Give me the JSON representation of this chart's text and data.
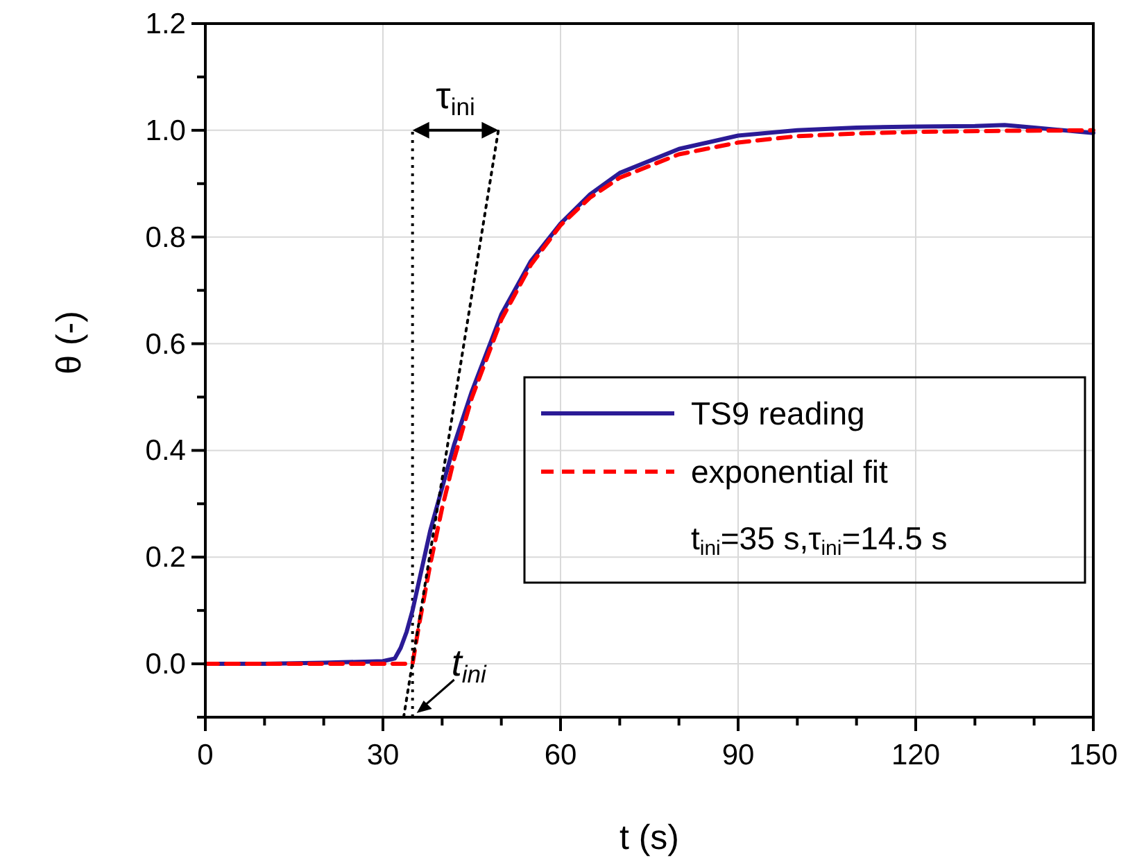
{
  "chart_data": {
    "type": "line",
    "xlabel": "t (s)",
    "ylabel": "θ (-)",
    "xlim": [
      0,
      150
    ],
    "xticks": [
      0,
      {
        "value": 10,
        "label": null
      },
      {
        "value": 20,
        "label": null
      },
      30,
      {
        "value": 40,
        "label": null
      },
      {
        "value": 50,
        "label": null
      },
      60,
      {
        "value": 70,
        "label": null
      },
      {
        "value": 80,
        "label": null
      },
      90,
      {
        "value": 100,
        "label": null
      },
      {
        "value": 110,
        "label": null
      },
      120,
      {
        "value": 130,
        "label": null
      },
      {
        "value": 140,
        "label": null
      },
      150
    ],
    "ylim": [
      -0.1,
      1.2
    ],
    "yticks": [
      {
        "value": -0.1,
        "label": null
      },
      {
        "value": 0,
        "label": "0.0"
      },
      {
        "value": 0.1,
        "label": null
      },
      0.2,
      {
        "value": 0.3,
        "label": null
      },
      0.4,
      {
        "value": 0.5,
        "label": null
      },
      0.6,
      {
        "value": 0.7,
        "label": null
      },
      0.8,
      {
        "value": 0.9,
        "label": null
      },
      {
        "value": 1,
        "label": "1.0"
      },
      {
        "value": 1.1,
        "label": null
      },
      1.2
    ],
    "grid": true,
    "legend": "right",
    "series": [
      {
        "name": "TS9 reading",
        "color": "#2b1b96",
        "line_style": "solid",
        "x": [
          0,
          10,
          20,
          30,
          32,
          33,
          34,
          35,
          36,
          38,
          40,
          42,
          45,
          50,
          55,
          60,
          65,
          70,
          80,
          90,
          100,
          110,
          120,
          130,
          135,
          140,
          150
        ],
        "values": [
          0,
          0,
          0.002,
          0.005,
          0.01,
          0.03,
          0.06,
          0.1,
          0.15,
          0.25,
          0.33,
          0.41,
          0.51,
          0.655,
          0.755,
          0.825,
          0.88,
          0.92,
          0.965,
          0.99,
          1.0,
          1.005,
          1.007,
          1.008,
          1.01,
          1.005,
          0.995
        ]
      },
      {
        "name": "exponential fit",
        "color": "#ff0000",
        "line_style": "dashed",
        "x": [
          0,
          35,
          36,
          38,
          40,
          42,
          45,
          50,
          55,
          60,
          65,
          70,
          80,
          90,
          100,
          110,
          120,
          135,
          150
        ],
        "values": [
          0,
          0,
          0.067,
          0.187,
          0.292,
          0.383,
          0.498,
          0.645,
          0.748,
          0.822,
          0.874,
          0.911,
          0.955,
          0.977,
          0.989,
          0.994,
          0.997,
          0.999,
          1.0
        ]
      },
      {
        "color": "#000000",
        "line_style": "dotted",
        "x": [
          33.5,
          49.5
        ],
        "values": [
          -0.1,
          1.0
        ]
      }
    ],
    "ref_lines": [
      {
        "axis": "x",
        "value": 35,
        "color": "#000000",
        "line_style": "dotted"
      }
    ],
    "annotations": [
      "τ$_{ini}$",
      {
        "text": "t$_{ini}$",
        "x": 35,
        "y": -0.1
      },
      "t$_{ini}$=35 s,τ$_{ini}$=14.5 s"
    ]
  }
}
